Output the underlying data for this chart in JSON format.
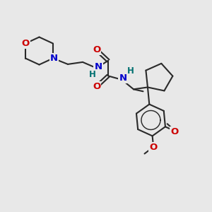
{
  "bg_color": "#e8e8e8",
  "bond_color": "#2a2a2a",
  "N_color": "#0000cc",
  "O_color": "#cc0000",
  "H_color": "#007070",
  "lw": 1.5,
  "fs": 9.5,
  "xlim": [
    0,
    10
  ],
  "ylim": [
    0,
    10
  ]
}
